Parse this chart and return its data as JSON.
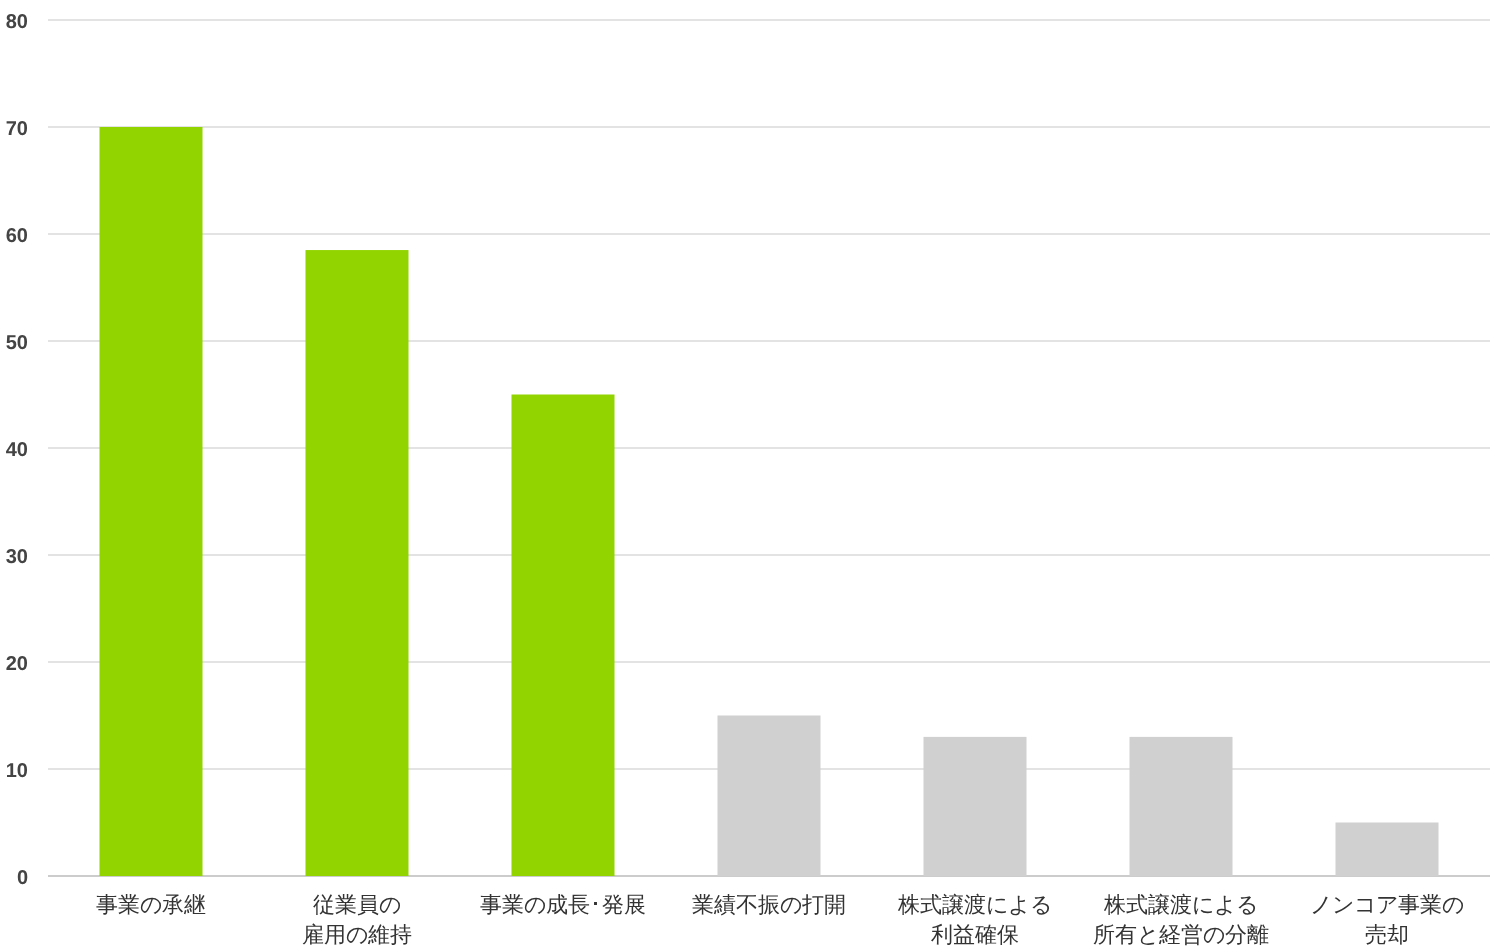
{
  "chart_data": {
    "type": "bar",
    "categories": [
      "事業の承継",
      "従業員の雇用の維持",
      "事業の成長･発展",
      "業績不振の打開",
      "株式譲渡による利益確保",
      "株式譲渡による所有と経営の分離",
      "ノンコア事業の売却"
    ],
    "values": [
      70,
      58.5,
      45,
      15,
      13,
      13,
      5
    ],
    "colors": [
      "#92d400",
      "#92d400",
      "#92d400",
      "#d0d0d0",
      "#d0d0d0",
      "#d0d0d0",
      "#d0d0d0"
    ],
    "ylim": [
      0,
      80
    ],
    "yticks": [
      0,
      10,
      20,
      30,
      40,
      50,
      60,
      70,
      80
    ],
    "grid": "y"
  }
}
